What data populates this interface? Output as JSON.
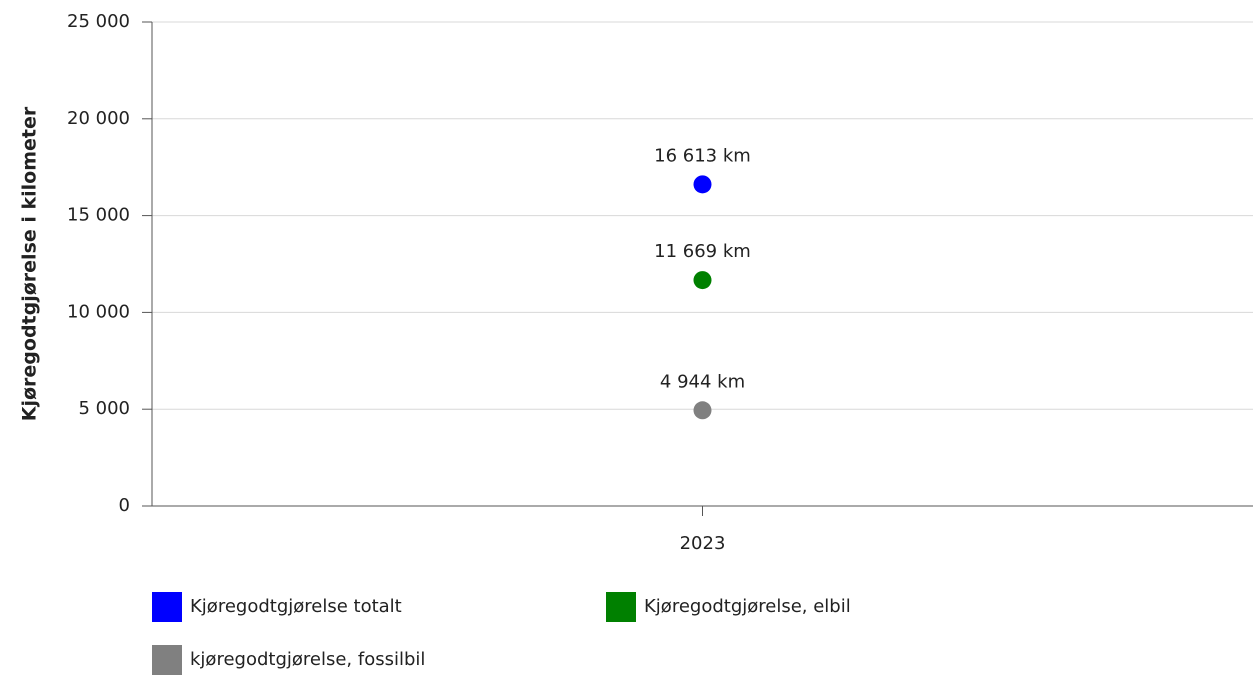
{
  "chart_data": {
    "type": "line",
    "y_label": "Kjøregodtgjørelse i kilometer",
    "categories": [
      "2023"
    ],
    "series": [
      {
        "name": "Kjøregodtgjørelse totalt",
        "color": "#0000ff",
        "values": [
          16613
        ],
        "value_labels": [
          "16 613 km"
        ]
      },
      {
        "name": "Kjøregodtgjørelse, elbil",
        "color": "#008000",
        "values": [
          11669
        ],
        "value_labels": [
          "11 669 km"
        ]
      },
      {
        "name": "kjøregodtgjørelse, fossilbil",
        "color": "#808080",
        "values": [
          4944
        ],
        "value_labels": [
          "4 944 km"
        ]
      }
    ],
    "ylim": [
      0,
      25000
    ],
    "yticks": [
      0,
      {
        "value": 5000,
        "label": "5 000"
      },
      {
        "value": 10000,
        "label": "10 000"
      },
      {
        "value": 15000,
        "label": "15 000"
      },
      {
        "value": 20000,
        "label": "20 000"
      },
      {
        "value": 25000,
        "label": "25 000"
      }
    ],
    "grid": true
  }
}
